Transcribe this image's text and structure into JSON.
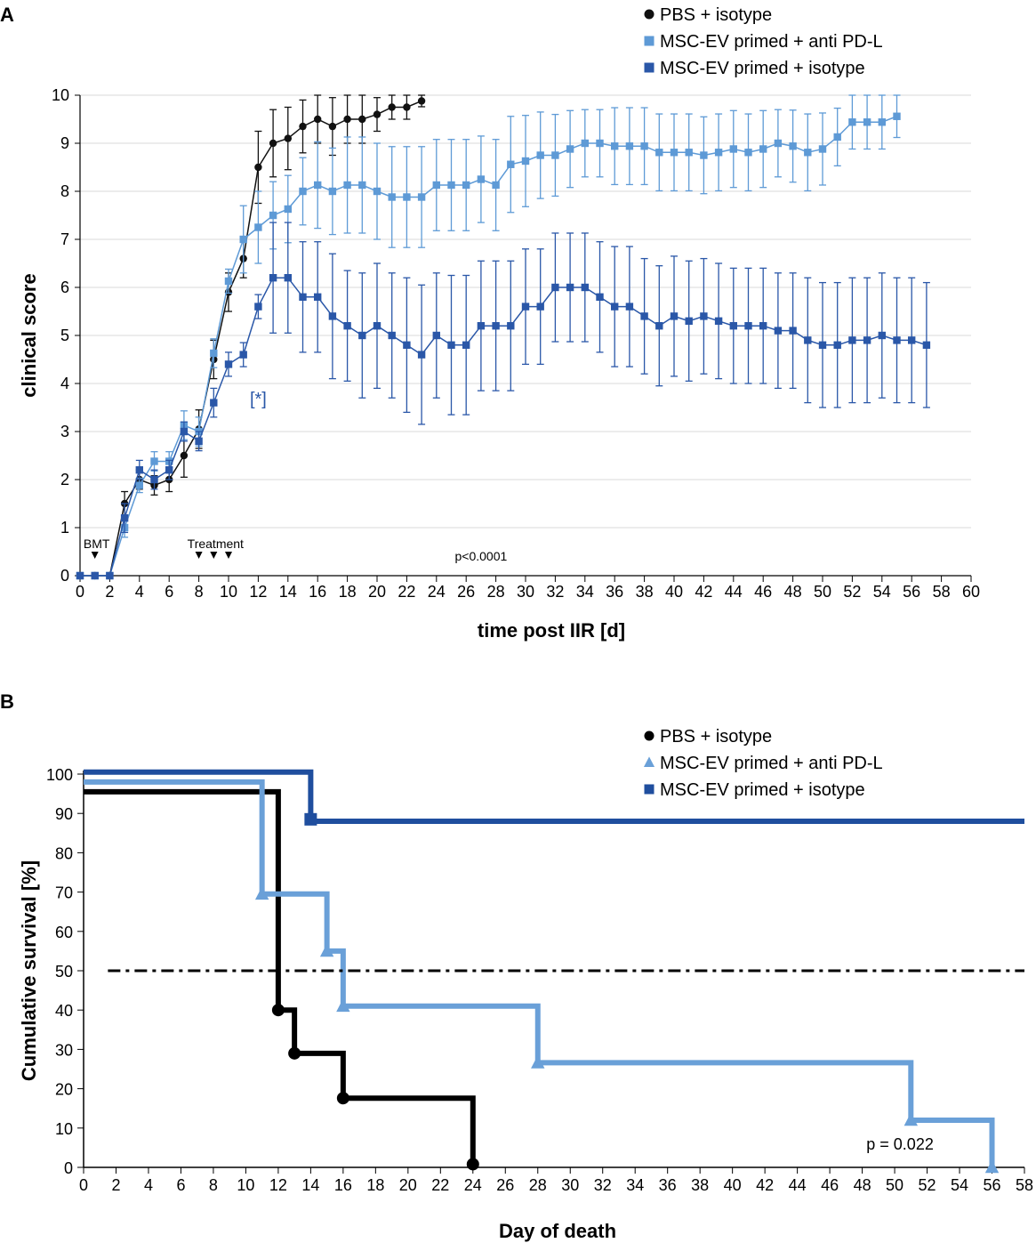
{
  "figure": {
    "panel_a_label": "A",
    "panel_b_label": "B"
  },
  "chart_data": [
    {
      "panel": "A",
      "type": "line",
      "title": "",
      "xlabel": "time post IIR [d]",
      "ylabel": "clinical score",
      "xlim": [
        0,
        60
      ],
      "ylim": [
        0,
        10
      ],
      "xticks": [
        0,
        2,
        4,
        6,
        8,
        10,
        12,
        14,
        16,
        18,
        20,
        22,
        24,
        26,
        28,
        30,
        32,
        34,
        36,
        38,
        40,
        42,
        44,
        46,
        48,
        50,
        52,
        54,
        56,
        58,
        60
      ],
      "yticks": [
        0,
        1,
        2,
        3,
        4,
        5,
        6,
        7,
        8,
        9,
        10
      ],
      "legend_position": "top-right",
      "annotations": {
        "bmt_label": "BMT",
        "bmt_day": 1,
        "treatment_label": "Treatment",
        "treatment_days": [
          8,
          9,
          10
        ],
        "significance_label": "[*]",
        "significance_day": 12,
        "significance_score": 4.0,
        "p_value": "p<0.0001",
        "p_value_day": 27,
        "p_value_score": 0.4
      },
      "series": [
        {
          "name": "PBS + isotype",
          "color": "#111111",
          "marker": "circle",
          "x": [
            0,
            1,
            2,
            3,
            4,
            5,
            6,
            7,
            8,
            9,
            10,
            11,
            12,
            13,
            14,
            15,
            16,
            17,
            18,
            19,
            20,
            21,
            22,
            23
          ],
          "y": [
            0,
            0,
            0,
            1.5,
            2.0,
            1.88,
            2.0,
            2.5,
            3.05,
            4.5,
            5.9,
            6.6,
            8.5,
            9.0,
            9.1,
            9.35,
            9.5,
            9.35,
            9.5,
            9.5,
            9.6,
            9.75,
            9.75,
            9.88
          ],
          "err": [
            0,
            0,
            0,
            0.25,
            0.2,
            0.2,
            0.25,
            0.45,
            0.4,
            0.4,
            0.4,
            0.4,
            0.75,
            0.7,
            0.65,
            0.55,
            0.5,
            0.6,
            0.5,
            0.5,
            0.35,
            0.25,
            0.25,
            0.12
          ]
        },
        {
          "name": "MSC-EV primed + anti PD-L",
          "color": "#5e9ad6",
          "marker": "square",
          "x": [
            0,
            1,
            2,
            3,
            4,
            5,
            6,
            7,
            8,
            9,
            10,
            11,
            12,
            13,
            14,
            15,
            16,
            17,
            18,
            19,
            20,
            21,
            22,
            23,
            24,
            25,
            26,
            27,
            28,
            29,
            30,
            31,
            32,
            33,
            34,
            35,
            36,
            37,
            38,
            39,
            40,
            41,
            42,
            43,
            44,
            45,
            46,
            47,
            48,
            49,
            50,
            51,
            52,
            53,
            54,
            55
          ],
          "y": [
            0,
            0,
            0,
            1.0,
            1.88,
            2.38,
            2.38,
            3.13,
            3.0,
            4.63,
            6.13,
            7.0,
            7.25,
            7.5,
            7.63,
            8.0,
            8.13,
            8.0,
            8.13,
            8.13,
            8.0,
            7.88,
            7.88,
            7.88,
            8.13,
            8.13,
            8.13,
            8.25,
            8.13,
            8.56,
            8.63,
            8.75,
            8.75,
            8.88,
            9.0,
            9.0,
            8.94,
            8.94,
            8.94,
            8.81,
            8.81,
            8.81,
            8.75,
            8.81,
            8.88,
            8.81,
            8.88,
            9.0,
            8.94,
            8.81,
            8.88,
            9.13,
            9.44,
            9.44,
            9.44,
            9.56
          ],
          "err": [
            0,
            0,
            0,
            0.2,
            0.15,
            0.2,
            0.2,
            0.3,
            0.3,
            0.3,
            0.25,
            0.7,
            0.75,
            0.7,
            0.7,
            0.7,
            0.9,
            0.9,
            1.0,
            1.0,
            1.0,
            1.05,
            1.05,
            1.05,
            0.95,
            0.95,
            0.95,
            0.9,
            0.95,
            1.0,
            0.95,
            0.9,
            0.85,
            0.8,
            0.7,
            0.7,
            0.8,
            0.8,
            0.8,
            0.8,
            0.8,
            0.8,
            0.8,
            0.8,
            0.8,
            0.8,
            0.8,
            0.7,
            0.75,
            0.8,
            0.75,
            0.6,
            0.56,
            0.56,
            0.56,
            0.44
          ]
        },
        {
          "name": "MSC-EV primed + isotype",
          "color": "#2a57a8",
          "marker": "square",
          "x": [
            0,
            1,
            2,
            3,
            4,
            5,
            6,
            7,
            8,
            9,
            10,
            11,
            12,
            13,
            14,
            15,
            16,
            17,
            18,
            19,
            20,
            21,
            22,
            23,
            24,
            25,
            26,
            27,
            28,
            29,
            30,
            31,
            32,
            33,
            34,
            35,
            36,
            37,
            38,
            39,
            40,
            41,
            42,
            43,
            44,
            45,
            46,
            47,
            48,
            49,
            50,
            51,
            52,
            53,
            54,
            55,
            56,
            57
          ],
          "y": [
            0,
            0,
            0,
            1.2,
            2.2,
            2.0,
            2.2,
            3.0,
            2.8,
            3.6,
            4.4,
            4.6,
            5.6,
            6.2,
            6.2,
            5.8,
            5.8,
            5.4,
            5.2,
            5.0,
            5.2,
            5.0,
            4.8,
            4.6,
            5.0,
            4.8,
            4.8,
            5.2,
            5.2,
            5.2,
            5.6,
            5.6,
            6.0,
            6.0,
            6.0,
            5.8,
            5.6,
            5.6,
            5.4,
            5.2,
            5.4,
            5.3,
            5.4,
            5.3,
            5.2,
            5.2,
            5.2,
            5.1,
            5.1,
            4.9,
            4.8,
            4.8,
            4.9,
            4.9,
            5.0,
            4.9,
            4.9,
            4.8
          ],
          "err": [
            0,
            0,
            0,
            0.3,
            0.2,
            0.2,
            0.2,
            0.2,
            0.2,
            0.3,
            0.25,
            0.25,
            0.25,
            1.15,
            1.15,
            1.15,
            1.15,
            1.3,
            1.15,
            1.3,
            1.3,
            1.3,
            1.4,
            1.45,
            1.3,
            1.45,
            1.45,
            1.35,
            1.35,
            1.35,
            1.2,
            1.2,
            1.13,
            1.13,
            1.13,
            1.15,
            1.25,
            1.25,
            1.2,
            1.25,
            1.25,
            1.25,
            1.2,
            1.2,
            1.2,
            1.2,
            1.2,
            1.2,
            1.2,
            1.3,
            1.3,
            1.3,
            1.3,
            1.3,
            1.3,
            1.3,
            1.3,
            1.3
          ]
        }
      ]
    },
    {
      "panel": "B",
      "type": "line",
      "subtype": "kaplan-meier",
      "title": "",
      "xlabel": "Day of death",
      "ylabel": "Cumulative survival [%]",
      "xlim": [
        0,
        58
      ],
      "ylim": [
        0,
        100
      ],
      "xticks": [
        0,
        2,
        4,
        6,
        8,
        10,
        12,
        14,
        16,
        18,
        20,
        22,
        24,
        26,
        28,
        30,
        32,
        34,
        36,
        38,
        40,
        42,
        44,
        46,
        48,
        50,
        52,
        54,
        56,
        58
      ],
      "yticks": [
        0,
        10,
        20,
        30,
        40,
        50,
        60,
        70,
        80,
        90,
        100
      ],
      "legend_position": "top-right",
      "reference_line": {
        "y": 50,
        "style": "dash-dot",
        "color": "#000000"
      },
      "p_value": "p = 0.022",
      "p_value_day": 50,
      "p_value_percent": 5,
      "series": [
        {
          "name": "PBS + isotype",
          "color": "#000000",
          "marker": "circle",
          "steps": [
            [
              0,
              95.5
            ],
            [
              12,
              40
            ],
            [
              13,
              29
            ],
            [
              16,
              17.6
            ],
            [
              24,
              0
            ]
          ],
          "markers": [
            [
              12,
              40
            ],
            [
              13,
              29
            ],
            [
              16,
              17.6
            ],
            [
              24,
              0.8
            ]
          ]
        },
        {
          "name": "MSC-EV primed + anti PD-L",
          "color": "#6aa0d8",
          "marker": "triangle",
          "steps": [
            [
              0,
              98
            ],
            [
              11,
              69.5
            ],
            [
              15,
              55
            ],
            [
              16,
              41
            ],
            [
              28,
              26.6
            ],
            [
              51,
              12
            ],
            [
              56,
              0
            ]
          ],
          "markers": [
            [
              11,
              69.5
            ],
            [
              15,
              55
            ],
            [
              16,
              41
            ],
            [
              28,
              26.6
            ],
            [
              51,
              12
            ],
            [
              56,
              0
            ]
          ]
        },
        {
          "name": "MSC-EV primed + isotype",
          "color": "#1f4e9e",
          "marker": "square",
          "steps": [
            [
              0,
              100.5
            ],
            [
              14,
              88
            ],
            [
              58,
              88
            ]
          ],
          "markers": [
            [
              14,
              88.5
            ]
          ]
        }
      ]
    }
  ]
}
